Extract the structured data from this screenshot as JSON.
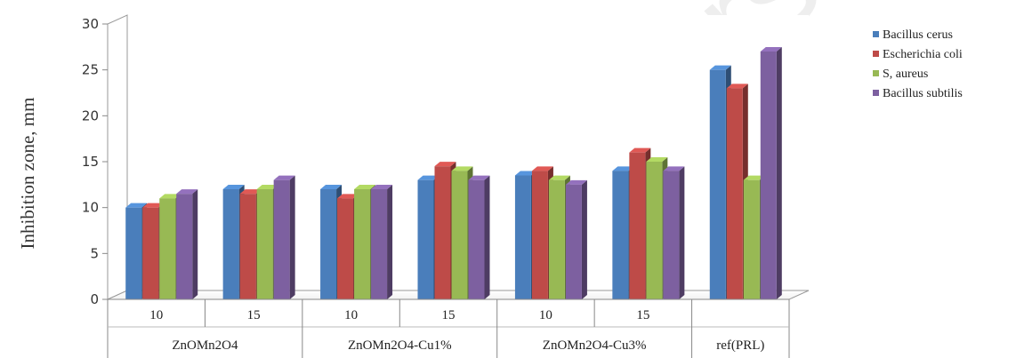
{
  "chart_data": {
    "type": "bar",
    "ylabel": "Inhibition zone, mm",
    "xlabel": "",
    "ylim": [
      0,
      30
    ],
    "yticks": [
      0,
      5,
      10,
      15,
      20,
      25,
      30
    ],
    "grid": false,
    "legend_position": "right",
    "groups": [
      {
        "label": "ZnOMn2O4",
        "subcategories": [
          "10",
          "15"
        ]
      },
      {
        "label": "ZnOMn2O4-Cu1%",
        "subcategories": [
          "10",
          "15"
        ]
      },
      {
        "label": "ZnOMn2O4-Cu3%",
        "subcategories": [
          "10",
          "15"
        ]
      },
      {
        "label": "ref(PRL)",
        "subcategories": [
          ""
        ]
      }
    ],
    "series": [
      {
        "name": "Bacillus cerus",
        "color": "#4a7ebb",
        "values": [
          10,
          12,
          12,
          13,
          13.5,
          14,
          25
        ]
      },
      {
        "name": "Escherichia coli",
        "color": "#be4b48",
        "values": [
          10,
          11.5,
          11,
          14.5,
          14,
          16,
          23
        ]
      },
      {
        "name": "S, aureus",
        "color": "#98b954",
        "values": [
          11,
          12,
          12,
          14,
          13,
          15,
          13
        ]
      },
      {
        "name": "Bacillus subtilis",
        "color": "#7d60a0",
        "values": [
          11.5,
          13,
          12,
          13,
          12.5,
          14,
          27
        ]
      }
    ]
  }
}
